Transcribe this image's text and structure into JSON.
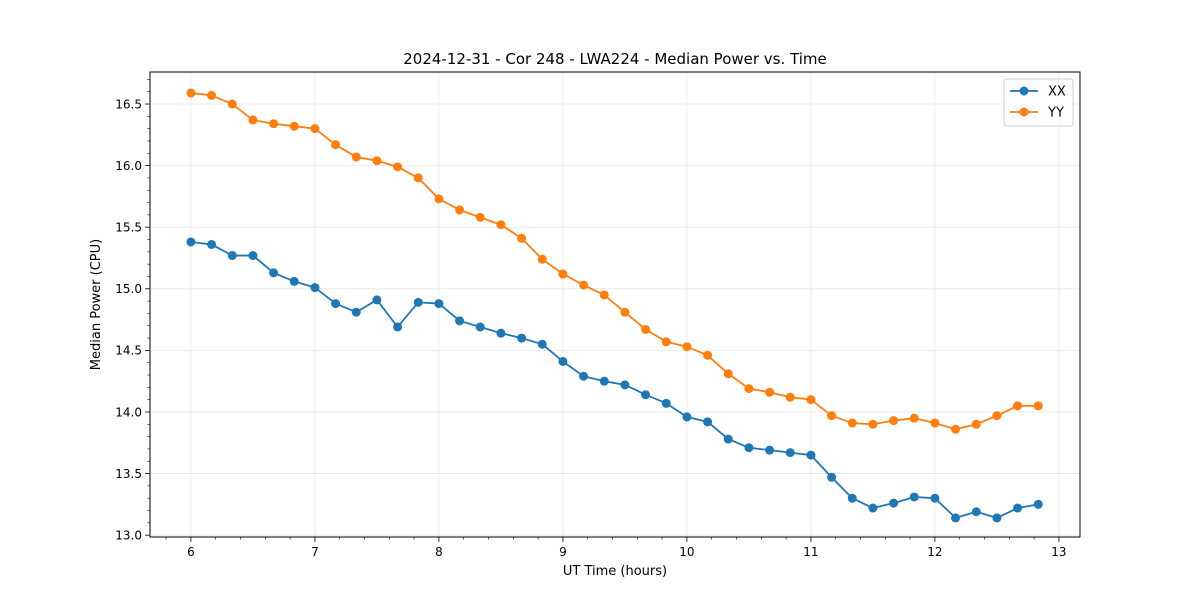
{
  "chart_data": {
    "type": "line",
    "title": "2024-12-31 - Cor 248 - LWA224 - Median Power vs. Time",
    "xlabel": "UT Time (hours)",
    "ylabel": "Median Power (CPU)",
    "xlim": [
      5.67,
      13.17
    ],
    "ylim": [
      12.985,
      16.76
    ],
    "xticks": [
      6,
      7,
      8,
      9,
      10,
      11,
      12,
      13
    ],
    "yticks": [
      13.0,
      13.5,
      14.0,
      14.5,
      15.0,
      15.5,
      16.0,
      16.5
    ],
    "ytick_labels": [
      "13.0",
      "13.5",
      "14.0",
      "14.5",
      "15.0",
      "15.5",
      "16.0",
      "16.5"
    ],
    "grid": true,
    "legend_position": "top-right",
    "x": [
      6.0,
      6.1667,
      6.3333,
      6.5,
      6.6667,
      6.8333,
      7.0,
      7.1667,
      7.3333,
      7.5,
      7.6667,
      7.8333,
      8.0,
      8.1667,
      8.3333,
      8.5,
      8.6667,
      8.8333,
      9.0,
      9.1667,
      9.3333,
      9.5,
      9.6667,
      9.8333,
      10.0,
      10.1667,
      10.3333,
      10.5,
      10.6667,
      10.8333,
      11.0,
      11.1667,
      11.3333,
      11.5,
      11.6667,
      11.8333,
      12.0,
      12.1667,
      12.3333,
      12.5,
      12.6667,
      12.8333
    ],
    "series": [
      {
        "name": "XX",
        "color": "#1f77b4",
        "values": [
          15.38,
          15.36,
          15.27,
          15.27,
          15.13,
          15.06,
          15.01,
          14.88,
          14.81,
          14.91,
          14.69,
          14.89,
          14.88,
          14.74,
          14.69,
          14.64,
          14.6,
          14.55,
          14.41,
          14.29,
          14.25,
          14.22,
          14.14,
          14.07,
          13.96,
          13.92,
          13.78,
          13.71,
          13.69,
          13.67,
          13.65,
          13.47,
          13.3,
          13.22,
          13.26,
          13.31,
          13.3,
          13.14,
          13.19,
          13.14,
          13.22,
          13.25
        ]
      },
      {
        "name": "YY",
        "color": "#ff7f0e",
        "values": [
          16.59,
          16.57,
          16.5,
          16.37,
          16.34,
          16.32,
          16.3,
          16.17,
          16.07,
          16.04,
          15.99,
          15.9,
          15.73,
          15.64,
          15.58,
          15.52,
          15.41,
          15.24,
          15.12,
          15.03,
          14.95,
          14.81,
          14.67,
          14.57,
          14.53,
          14.46,
          14.31,
          14.19,
          14.16,
          14.12,
          14.1,
          13.97,
          13.91,
          13.9,
          13.93,
          13.95,
          13.91,
          13.86,
          13.9,
          13.97,
          14.05,
          14.05
        ]
      }
    ]
  }
}
